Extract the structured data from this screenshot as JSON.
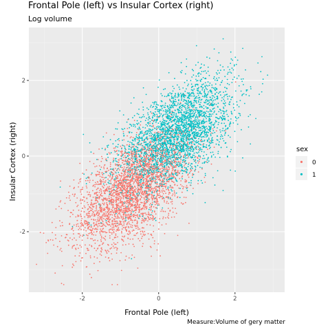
{
  "chart_data": {
    "type": "scatter",
    "title": "Frontal Pole (left) vs Insular Cortex (right)",
    "subtitle": "Log volume",
    "caption": "Measure:Volume of gery matter",
    "xlabel": "Frontal Pole (left)",
    "ylabel": "Insular Cortex (right)",
    "xlim": [
      -3.4,
      3.3
    ],
    "ylim": [
      -3.6,
      3.4
    ],
    "x_ticks": [
      -2,
      0,
      2
    ],
    "y_ticks": [
      -2,
      0,
      2
    ],
    "x_tick_labels": [
      "-2",
      "0",
      "2"
    ],
    "y_tick_labels": [
      "-2",
      "0",
      "2"
    ],
    "grid": true,
    "legend": {
      "title": "sex",
      "placement": "right",
      "entries": [
        {
          "label": "0",
          "color": "#F8766D"
        },
        {
          "label": "1",
          "color": "#00BFC4"
        }
      ]
    },
    "series": [
      {
        "name": "0",
        "color": "#F8766D",
        "center": [
          -0.7,
          -0.9
        ],
        "sd": [
          0.75,
          0.75
        ],
        "correlation": 0.55,
        "approx_points": 6000
      },
      {
        "name": "1",
        "color": "#00BFC4",
        "center": [
          0.45,
          0.55
        ],
        "sd": [
          0.75,
          0.75
        ],
        "correlation": 0.55,
        "approx_points": 6000
      }
    ]
  }
}
